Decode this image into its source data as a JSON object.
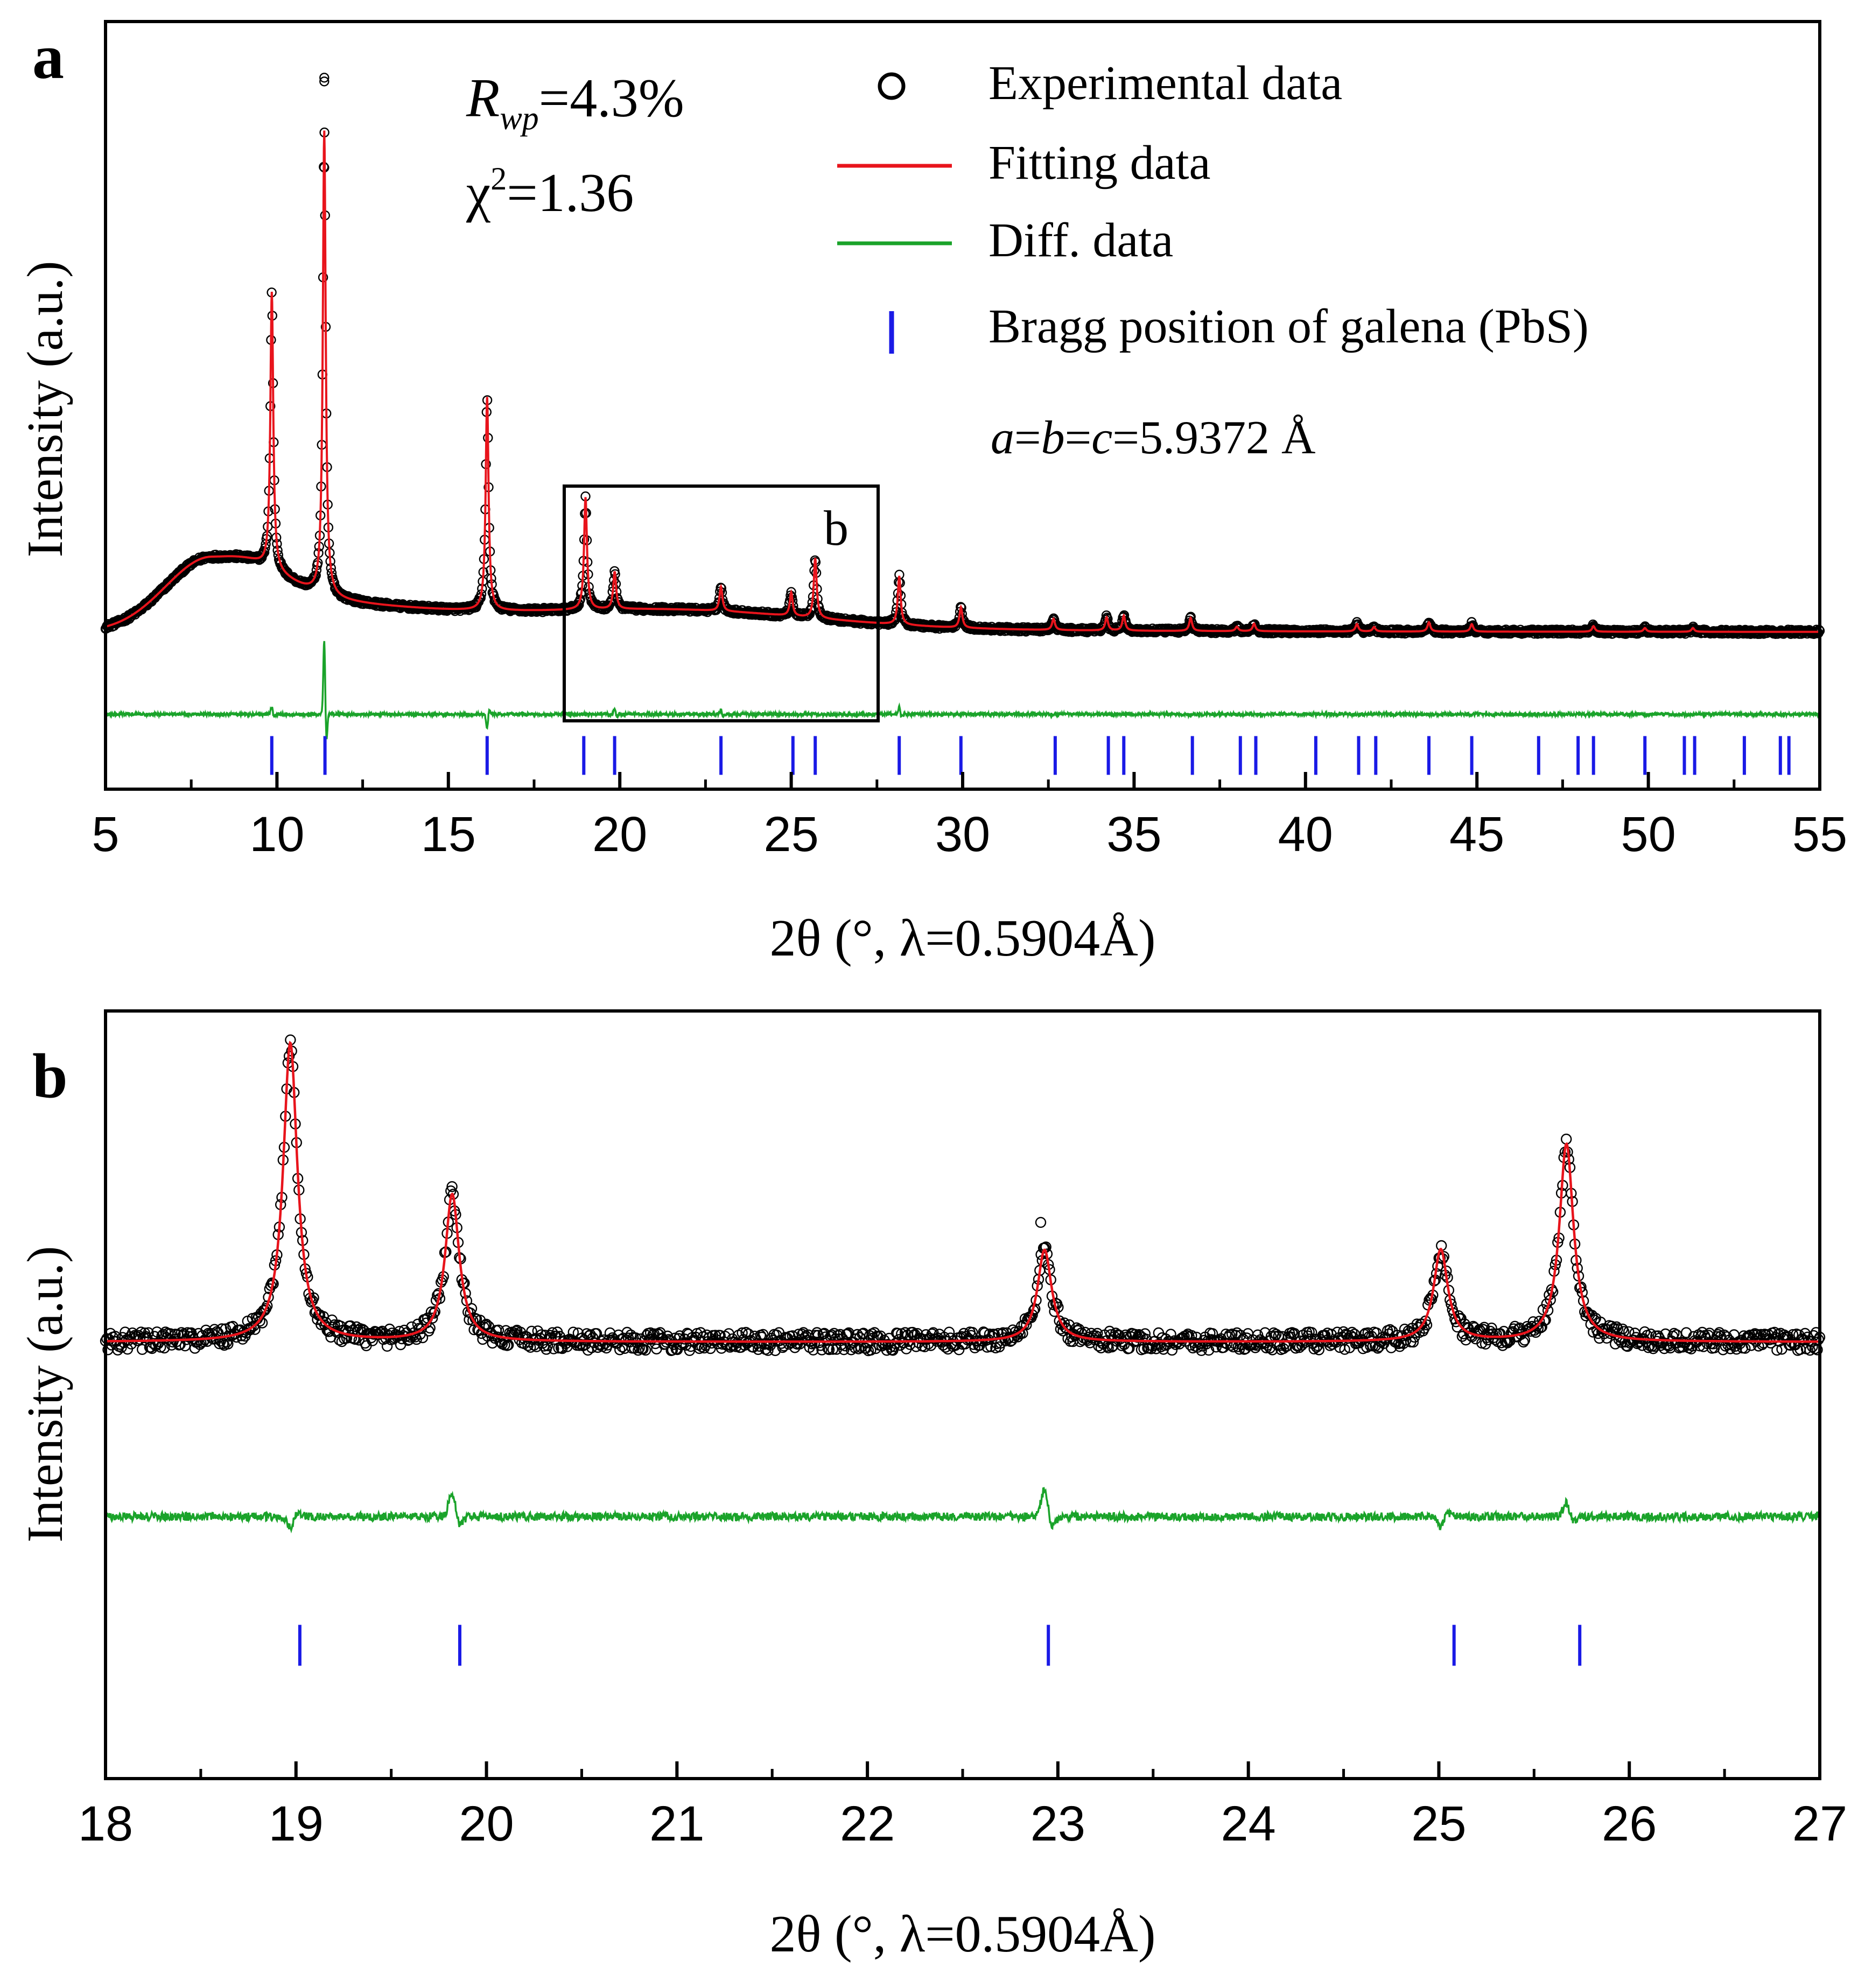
{
  "colors": {
    "experimental": "#000000",
    "fitting": "#e8141c",
    "difference": "#1aa32a",
    "bragg": "#1a1ae6",
    "axis": "#000000"
  },
  "legend": {
    "experimental": "Experimental data",
    "fitting": "Fitting data",
    "difference": "Diff. data",
    "bragg": "Bragg position of galena (PbS)"
  },
  "stats": {
    "rwp_symbol": "R",
    "rwp_sub": "wp",
    "rwp_value": "=4.3%",
    "chi_symbol": "χ",
    "chi_sup": "2",
    "chi_value": "=1.36"
  },
  "lattice": {
    "a": "a",
    "eq1": "=",
    "b": "b",
    "eq2": "=",
    "c": "c",
    "value": "=5.9372 Å"
  },
  "chart_data": [
    {
      "type": "scatter",
      "panel_label": "a",
      "inset_label": "b",
      "inset_range": [
        18.4,
        27.6
      ],
      "xlabel": "2θ (°, λ=0.5904Å)",
      "ylabel": "Intensity (a.u.)",
      "xlim": [
        5,
        55
      ],
      "ylim": [
        -0.25,
        1.8
      ],
      "xticks": [
        "5",
        "10",
        "15",
        "20",
        "25",
        "30",
        "35",
        "40",
        "45",
        "50",
        "55"
      ],
      "background": {
        "base": 0.17,
        "hump_center": 8.1,
        "hump_height": 0.2,
        "hump_width": 1.9,
        "tail_height": 0.14,
        "tail_decay": 7.0,
        "plateau_height": 0.04,
        "plateau_center": 22.0,
        "plateau_width": 5.5
      },
      "peaks": [
        {
          "x": 9.85,
          "h": 0.74,
          "w": 0.05
        },
        {
          "x": 11.38,
          "h": 1.24,
          "w": 0.05
        },
        {
          "x": 16.13,
          "h": 0.57,
          "w": 0.05
        },
        {
          "x": 19.0,
          "h": 0.3,
          "w": 0.05
        },
        {
          "x": 19.85,
          "h": 0.1,
          "w": 0.05
        },
        {
          "x": 22.95,
          "h": 0.065,
          "w": 0.05
        },
        {
          "x": 25.0,
          "h": 0.063,
          "w": 0.05
        },
        {
          "x": 25.7,
          "h": 0.16,
          "w": 0.05
        },
        {
          "x": 28.15,
          "h": 0.13,
          "w": 0.05
        },
        {
          "x": 29.95,
          "h": 0.055,
          "w": 0.05
        },
        {
          "x": 32.65,
          "h": 0.03,
          "w": 0.05
        },
        {
          "x": 34.2,
          "h": 0.035,
          "w": 0.05
        },
        {
          "x": 34.7,
          "h": 0.04,
          "w": 0.05
        },
        {
          "x": 36.65,
          "h": 0.035,
          "w": 0.05
        },
        {
          "x": 38.0,
          "h": 0.012,
          "w": 0.05
        },
        {
          "x": 38.5,
          "h": 0.02,
          "w": 0.05
        },
        {
          "x": 41.5,
          "h": 0.02,
          "w": 0.05
        },
        {
          "x": 42.0,
          "h": 0.012,
          "w": 0.05
        },
        {
          "x": 43.6,
          "h": 0.025,
          "w": 0.05
        },
        {
          "x": 44.85,
          "h": 0.02,
          "w": 0.05
        },
        {
          "x": 48.4,
          "h": 0.015,
          "w": 0.05
        },
        {
          "x": 49.9,
          "h": 0.01,
          "w": 0.05
        },
        {
          "x": 51.3,
          "h": 0.01,
          "w": 0.05
        }
      ],
      "outliers": [
        {
          "x": 11.38,
          "y": 1.64
        },
        {
          "x": 11.38,
          "y": 1.65
        },
        {
          "x": 11.38,
          "y": 1.41
        }
      ],
      "difference_offset": -0.05,
      "difference_spikes": [
        {
          "x": 9.85,
          "h": 0.02
        },
        {
          "x": 11.38,
          "h": 0.2
        },
        {
          "x": 16.13,
          "h": -0.04
        },
        {
          "x": 19.85,
          "h": 0.015
        },
        {
          "x": 22.95,
          "h": 0.012
        },
        {
          "x": 28.15,
          "h": 0.02
        }
      ],
      "bragg_y": -0.16,
      "bragg_positions": [
        9.85,
        11.4,
        16.13,
        18.95,
        19.85,
        22.95,
        25.05,
        25.7,
        28.15,
        29.95,
        32.7,
        34.25,
        34.7,
        36.7,
        38.1,
        38.55,
        40.3,
        41.55,
        42.05,
        43.6,
        44.85,
        46.8,
        47.95,
        48.4,
        49.9,
        51.05,
        51.35,
        52.8,
        53.85,
        54.1
      ]
    },
    {
      "type": "scatter",
      "panel_label": "b",
      "xlabel": "2θ (°, λ=0.5904Å)",
      "ylabel": "Intensity (a.u.)",
      "xlim": [
        18,
        27
      ],
      "ylim": [
        -0.95,
        0.72
      ],
      "xticks": [
        "18",
        "19",
        "20",
        "21",
        "22",
        "23",
        "24",
        "25",
        "26",
        "27"
      ],
      "background": {
        "base": 0.0
      },
      "peaks": [
        {
          "x": 18.97,
          "h": 0.65,
          "w": 0.045
        },
        {
          "x": 19.82,
          "h": 0.32,
          "w": 0.045
        },
        {
          "x": 22.93,
          "h": 0.2,
          "w": 0.045
        },
        {
          "x": 25.01,
          "h": 0.2,
          "w": 0.045
        },
        {
          "x": 25.67,
          "h": 0.43,
          "w": 0.045
        }
      ],
      "outliers": [
        {
          "x": 22.91,
          "y": 0.26
        }
      ],
      "difference_offset": -0.38,
      "difference_spikes": [
        {
          "x": 18.97,
          "h": -0.025
        },
        {
          "x": 19.82,
          "h": 0.055
        },
        {
          "x": 22.93,
          "h": 0.06
        },
        {
          "x": 25.01,
          "h": -0.02
        },
        {
          "x": 25.67,
          "h": 0.03
        }
      ],
      "bragg_y": -0.66,
      "bragg_positions": [
        19.02,
        19.86,
        22.95,
        25.08,
        25.74
      ]
    }
  ]
}
